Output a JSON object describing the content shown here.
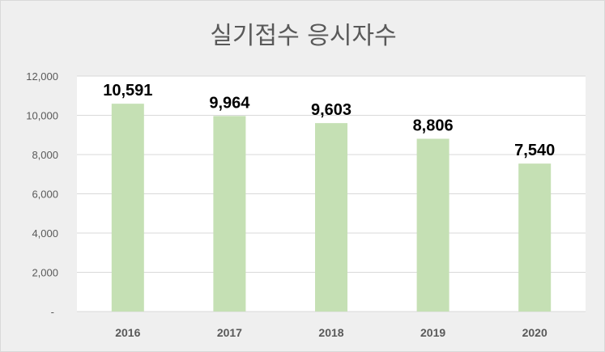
{
  "chart_data": {
    "type": "bar",
    "title": "실기접수 응시자수",
    "categories": [
      "2016",
      "2017",
      "2018",
      "2019",
      "2020"
    ],
    "values": [
      10591,
      9964,
      9603,
      8806,
      7540
    ],
    "value_labels": [
      "10,591",
      "9,964",
      "9,603",
      "8,806",
      "7,540"
    ],
    "ylim": [
      0,
      12000
    ],
    "yticks": [
      0,
      2000,
      4000,
      6000,
      8000,
      10000,
      12000
    ],
    "ytick_labels": [
      "-",
      "2,000",
      "4,000",
      "6,000",
      "8,000",
      "10,000",
      "12,000"
    ],
    "grid": true,
    "bar_color": "#c5e0b4",
    "plot_background": "#ffffff",
    "chart_background": "#efefef"
  }
}
